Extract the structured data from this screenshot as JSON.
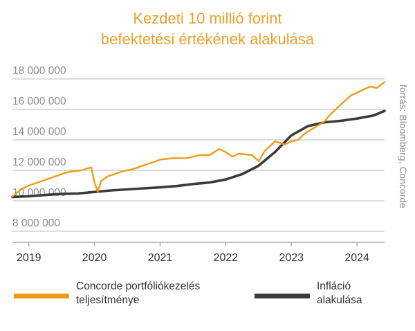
{
  "title_line1": "Kezdeti 10 millió forint",
  "title_line2": "befektetési értékének alakulása",
  "source": "forrás: Bloomberg, Concorde",
  "colors": {
    "title": "#e8a02a",
    "concorde": "#ef9a16",
    "inflation": "#3a3a3a",
    "axis_text": "#8c8c8c",
    "grid": "#c6c6c6"
  },
  "legend": [
    {
      "line1": "Concorde portfóliókezelés",
      "line2": "teljesítménye",
      "color": "#ef9a16"
    },
    {
      "line1": "Infláció",
      "line2": "alakulása",
      "color": "#3a3a3a"
    }
  ],
  "chart_data": {
    "type": "line",
    "title": "Kezdeti 10 millió forint befektetési értékének alakulása",
    "xlabel": "",
    "ylabel": "",
    "xlim": [
      2018.75,
      2024.42
    ],
    "ylim": [
      8000000,
      18000000
    ],
    "y_ticks": [
      8000000,
      10000000,
      12000000,
      14000000,
      16000000,
      18000000
    ],
    "y_tick_labels": [
      "8 000 000",
      "10 000 000",
      "12 000 000",
      "14 000 000",
      "16 000 000",
      "18 000 000"
    ],
    "x_ticks": [
      2019,
      2020,
      2021,
      2022,
      2023,
      2024
    ],
    "x_tick_labels": [
      "2019",
      "2020",
      "2021",
      "2022",
      "2023",
      "2024"
    ],
    "grid": "horizontal",
    "legend_position": "bottom",
    "series": [
      {
        "name": "Concorde portfóliókezelés teljesítménye",
        "x": [
          2018.75,
          2018.9,
          2019.0,
          2019.2,
          2019.4,
          2019.6,
          2019.8,
          2019.95,
          2020.0,
          2020.05,
          2020.1,
          2020.2,
          2020.4,
          2020.6,
          2020.8,
          2021.0,
          2021.2,
          2021.4,
          2021.6,
          2021.75,
          2021.9,
          2022.0,
          2022.1,
          2022.2,
          2022.4,
          2022.5,
          2022.6,
          2022.75,
          2022.9,
          2023.0,
          2023.1,
          2023.2,
          2023.35,
          2023.5,
          2023.6,
          2023.75,
          2023.9,
          2024.0,
          2024.1,
          2024.2,
          2024.3,
          2024.42
        ],
        "values": [
          10300000,
          10800000,
          11000000,
          11300000,
          11600000,
          11900000,
          12000000,
          12200000,
          11200000,
          10600000,
          11300000,
          11600000,
          11900000,
          12100000,
          12400000,
          12700000,
          12800000,
          12800000,
          13000000,
          13000000,
          13400000,
          13200000,
          12900000,
          13100000,
          13000000,
          12600000,
          13300000,
          13900000,
          13700000,
          13900000,
          14000000,
          14400000,
          14800000,
          15200000,
          15700000,
          16300000,
          16900000,
          17100000,
          17300000,
          17500000,
          17400000,
          17800000
        ]
      },
      {
        "name": "Infláció alakulása",
        "x": [
          2018.75,
          2019.0,
          2019.25,
          2019.5,
          2019.75,
          2020.0,
          2020.25,
          2020.5,
          2020.75,
          2021.0,
          2021.25,
          2021.5,
          2021.75,
          2022.0,
          2022.25,
          2022.5,
          2022.75,
          2023.0,
          2023.25,
          2023.5,
          2023.75,
          2024.0,
          2024.25,
          2024.42
        ],
        "values": [
          10250000,
          10300000,
          10380000,
          10450000,
          10480000,
          10580000,
          10680000,
          10750000,
          10820000,
          10880000,
          10970000,
          11100000,
          11200000,
          11400000,
          11750000,
          12300000,
          13200000,
          14300000,
          14900000,
          15150000,
          15250000,
          15400000,
          15600000,
          15900000
        ]
      }
    ]
  }
}
